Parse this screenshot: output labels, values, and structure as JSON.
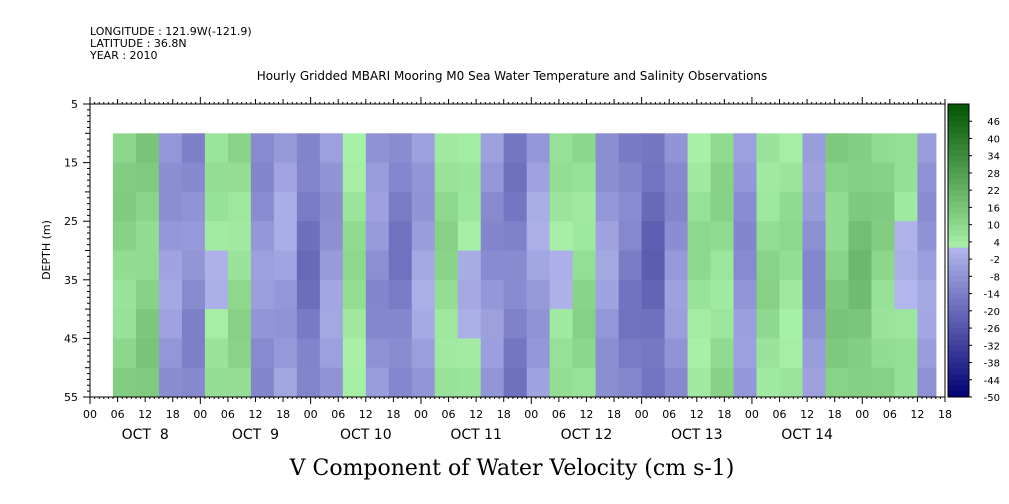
{
  "header": {
    "longitude": "LONGITUDE : 121.9W(-121.9)",
    "latitude": "LATITUDE : 36.8N",
    "year": "YEAR : 2010"
  },
  "chart_data": {
    "type": "heatmap",
    "title": "Hourly Gridded MBARI Mooring M0 Sea Water Temperature and Salinity Observations",
    "xlabel": "",
    "ylabel": "DEPTH (m)",
    "variable_label": "V Component of Water Velocity (cm s-1)",
    "ylim": [
      5,
      55
    ],
    "y_ticks": [
      "5",
      "15",
      "25",
      "35",
      "45",
      "55"
    ],
    "x_hour_labels": [
      "00",
      "06",
      "12",
      "18",
      "00",
      "06",
      "12",
      "18",
      "00",
      "06",
      "12",
      "18",
      "00",
      "06",
      "12",
      "18",
      "00",
      "06",
      "12",
      "18",
      "00",
      "06",
      "12",
      "18",
      "00",
      "06",
      "12",
      "18",
      "00",
      "06",
      "12",
      "18"
    ],
    "x_date_labels": [
      "OCT  8",
      "OCT  9",
      "OCT 10",
      "OCT 11",
      "OCT 12",
      "OCT 13",
      "OCT 14"
    ],
    "x_range_hours": [
      0,
      186
    ],
    "data_start_hour": 5,
    "data_end_hour": 184,
    "data_depth_range": [
      10,
      55
    ],
    "colorbar": {
      "labels": [
        "46",
        "40",
        "34",
        "28",
        "22",
        "16",
        "10",
        "4",
        "-2",
        "-8",
        "-14",
        "-20",
        "-26",
        "-32",
        "-38",
        "-44",
        "-50"
      ],
      "range": [
        -50,
        52
      ]
    },
    "time_series_5h": [
      {
        "t": 5,
        "v": 10
      },
      {
        "t": 10,
        "v": 12
      },
      {
        "t": 15,
        "v": -6
      },
      {
        "t": 20,
        "v": -10
      },
      {
        "t": 25,
        "v": 4
      },
      {
        "t": 30,
        "v": 8
      },
      {
        "t": 35,
        "v": -8
      },
      {
        "t": 40,
        "v": -4
      },
      {
        "t": 45,
        "v": -16
      },
      {
        "t": 50,
        "v": -6
      },
      {
        "t": 55,
        "v": 6
      },
      {
        "t": 60,
        "v": -8
      },
      {
        "t": 65,
        "v": -14
      },
      {
        "t": 70,
        "v": -4
      },
      {
        "t": 75,
        "v": 8
      },
      {
        "t": 80,
        "v": 2
      },
      {
        "t": 85,
        "v": -8
      },
      {
        "t": 90,
        "v": -14
      },
      {
        "t": 95,
        "v": -4
      },
      {
        "t": 100,
        "v": 4
      },
      {
        "t": 105,
        "v": 8
      },
      {
        "t": 110,
        "v": -6
      },
      {
        "t": 115,
        "v": -14
      },
      {
        "t": 120,
        "v": -20
      },
      {
        "t": 125,
        "v": -8
      },
      {
        "t": 130,
        "v": 6
      },
      {
        "t": 135,
        "v": 8
      },
      {
        "t": 140,
        "v": -8
      },
      {
        "t": 145,
        "v": 8
      },
      {
        "t": 150,
        "v": 6
      },
      {
        "t": 155,
        "v": -8
      },
      {
        "t": 160,
        "v": 12
      },
      {
        "t": 165,
        "v": 16
      },
      {
        "t": 170,
        "v": 10
      },
      {
        "t": 175,
        "v": 4
      },
      {
        "t": 180,
        "v": -6
      }
    ]
  }
}
